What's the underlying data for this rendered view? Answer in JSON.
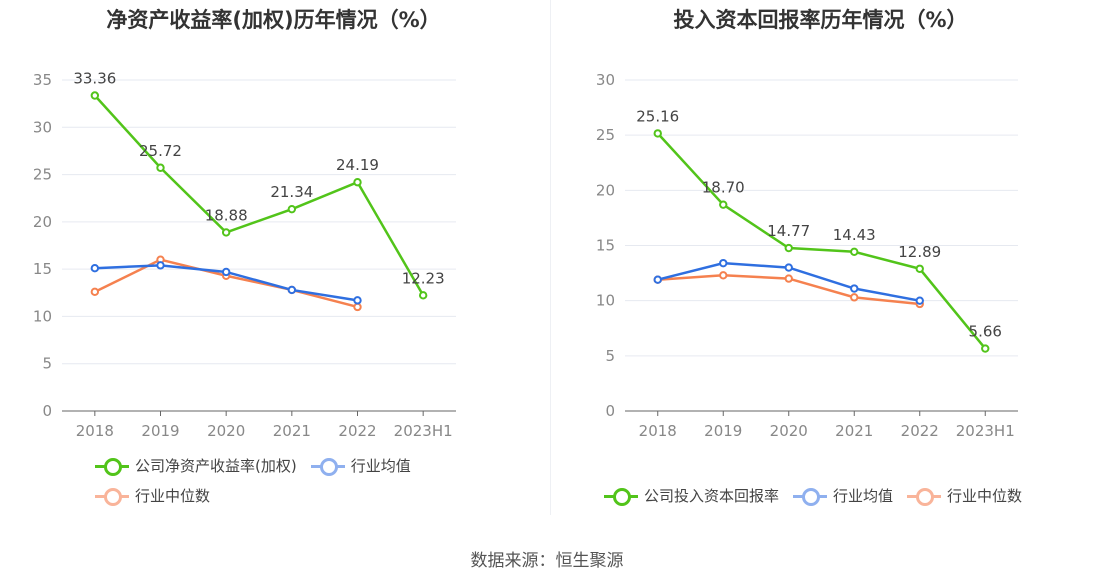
{
  "chart_data": [
    {
      "type": "line",
      "title": "净资产收益率(加权)历年情况（%）",
      "categories": [
        "2018",
        "2019",
        "2020",
        "2021",
        "2022",
        "2023H1"
      ],
      "ylim": [
        0,
        35
      ],
      "yticks": [
        0,
        5,
        10,
        15,
        20,
        25,
        30,
        35
      ],
      "grid": true,
      "legend_placement": "bottom",
      "series": [
        {
          "name": "公司净资产收益率(加权)",
          "color": "#52c41a",
          "values": [
            33.36,
            25.72,
            18.88,
            21.34,
            24.19,
            12.23
          ],
          "labels": [
            "33.36",
            "25.72",
            "18.88",
            "21.34",
            "24.19",
            "12.23"
          ]
        },
        {
          "name": "行业均值",
          "color": "#2f6fe0",
          "values": [
            15.1,
            15.4,
            14.7,
            12.8,
            11.7,
            null
          ]
        },
        {
          "name": "行业中位数",
          "color": "#f5814f",
          "values": [
            12.6,
            16.0,
            14.3,
            12.8,
            11.0,
            null
          ]
        }
      ]
    },
    {
      "type": "line",
      "title": "投入资本回报率历年情况（%）",
      "categories": [
        "2018",
        "2019",
        "2020",
        "2021",
        "2022",
        "2023H1"
      ],
      "ylim": [
        0,
        30
      ],
      "yticks": [
        0,
        5,
        10,
        15,
        20,
        25,
        30
      ],
      "grid": true,
      "legend_placement": "bottom",
      "series": [
        {
          "name": "公司投入资本回报率",
          "color": "#52c41a",
          "values": [
            25.16,
            18.7,
            14.77,
            14.43,
            12.89,
            5.66
          ],
          "labels": [
            "25.16",
            "18.70",
            "14.77",
            "14.43",
            "12.89",
            "5.66"
          ]
        },
        {
          "name": "行业均值",
          "color": "#2f6fe0",
          "values": [
            11.9,
            13.4,
            13.0,
            11.1,
            10.0,
            null
          ]
        },
        {
          "name": "行业中位数",
          "color": "#f5814f",
          "values": [
            11.9,
            12.3,
            12.0,
            10.3,
            9.7,
            null
          ]
        }
      ]
    }
  ],
  "source": "数据来源：恒生聚源"
}
